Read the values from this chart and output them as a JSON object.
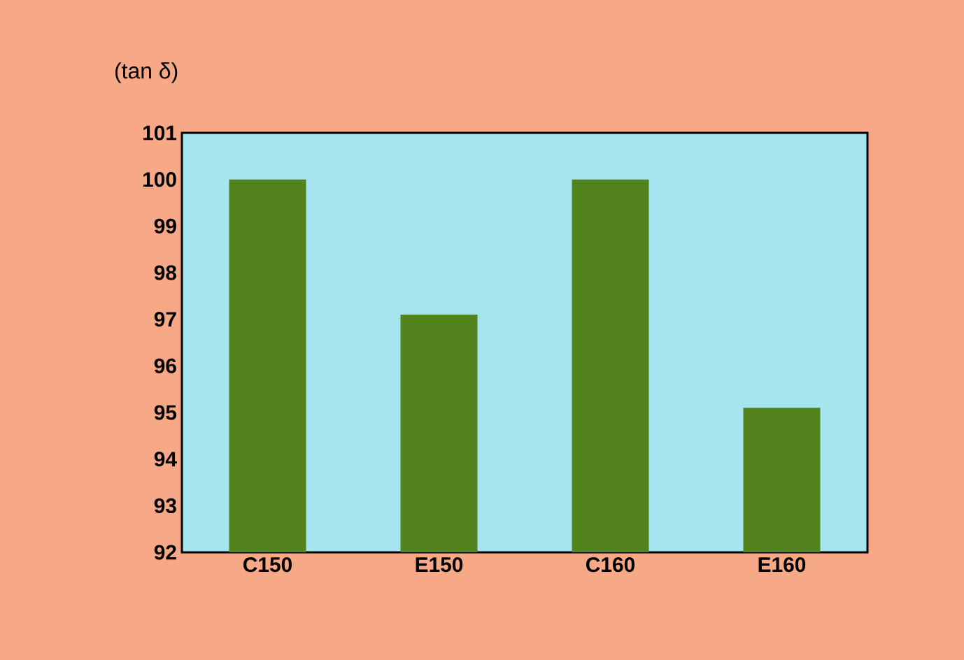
{
  "chart_data": {
    "type": "bar",
    "ylabel": "(tan δ)",
    "categories": [
      "C150",
      "E150",
      "C160",
      "E160"
    ],
    "values": [
      100,
      97.1,
      100,
      95.1
    ],
    "color": "#52831d",
    "ylim": [
      92,
      101
    ],
    "yticks": [
      92,
      93,
      94,
      95,
      96,
      97,
      98,
      99,
      100,
      101
    ],
    "grid": false
  }
}
